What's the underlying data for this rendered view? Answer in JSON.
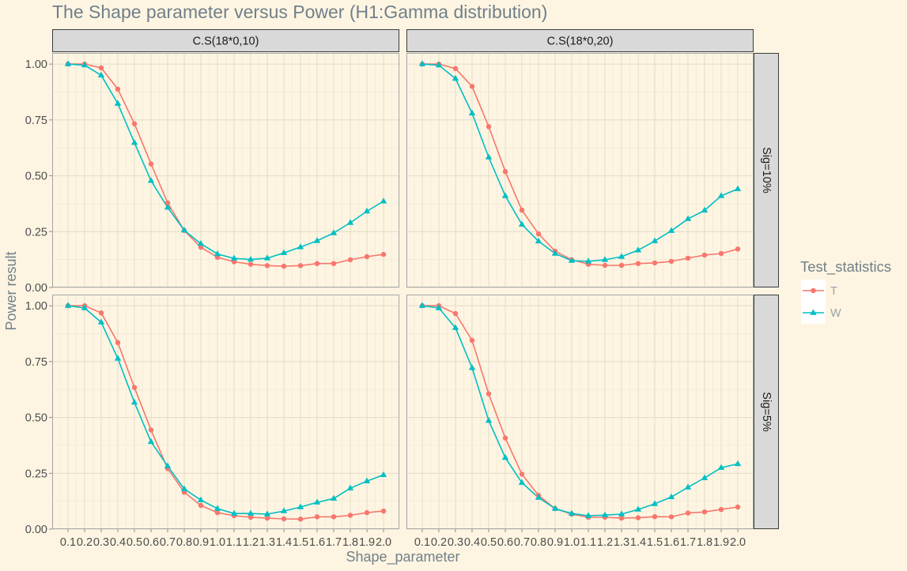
{
  "chart_data": {
    "type": "line",
    "title": "The Shape parameter versus Power (H1:Gamma distribution)",
    "xlabel": "Shape_parameter",
    "ylabel": "Power result",
    "x": [
      0.1,
      0.2,
      0.3,
      0.4,
      0.5,
      0.6,
      0.7,
      0.8,
      0.9,
      1.0,
      1.1,
      1.2,
      1.3,
      1.4,
      1.5,
      1.6,
      1.7,
      1.8,
      1.9,
      2.0
    ],
    "x_tick_labels": [
      "0.1",
      "0.2",
      "0.3",
      "0.4",
      "0.5",
      "0.6",
      "0.7",
      "0.8",
      "0.9",
      "1.0",
      "1.1",
      "1.2",
      "1.3",
      "1.4",
      "1.5",
      "1.6",
      "1.7",
      "1.8",
      "1.9",
      "2.0"
    ],
    "y_ticks": [
      0,
      0.25,
      0.5,
      0.75,
      1.0
    ],
    "y_tick_labels": [
      "0.00",
      "0.25",
      "0.50",
      "0.75",
      "1.00"
    ],
    "xlim": [
      0.005,
      2.095
    ],
    "ylim": [
      0,
      1.05
    ],
    "grid": true,
    "legend": {
      "title": "Test_statistics",
      "position": "right"
    },
    "series": [
      {
        "name": "T",
        "color": "#F8766D",
        "marker": "circle"
      },
      {
        "name": "W",
        "color": "#00BFC4",
        "marker": "triangle"
      }
    ],
    "facet_cols": [
      "C.S(18*0,10)",
      "C.S(18*0,20)"
    ],
    "facet_rows": [
      "Sig=10%",
      "Sig=5%"
    ],
    "panels": [
      {
        "facet_row": 0,
        "facet_col": 0,
        "values": {
          "T": [
            1.0,
            1.0,
            0.983,
            0.888,
            0.733,
            0.553,
            0.379,
            0.255,
            0.18,
            0.135,
            0.115,
            0.104,
            0.098,
            0.095,
            0.098,
            0.107,
            0.107,
            0.124,
            0.138,
            0.148
          ],
          "W": [
            1.0,
            0.995,
            0.95,
            0.823,
            0.648,
            0.478,
            0.358,
            0.256,
            0.196,
            0.15,
            0.13,
            0.125,
            0.131,
            0.155,
            0.181,
            0.209,
            0.244,
            0.29,
            0.341,
            0.386
          ]
        }
      },
      {
        "facet_row": 0,
        "facet_col": 1,
        "values": {
          "T": [
            1.0,
            1.0,
            0.98,
            0.9,
            0.72,
            0.519,
            0.346,
            0.24,
            0.163,
            0.124,
            0.104,
            0.099,
            0.099,
            0.107,
            0.11,
            0.117,
            0.131,
            0.145,
            0.152,
            0.172
          ],
          "W": [
            1.0,
            0.995,
            0.935,
            0.78,
            0.583,
            0.41,
            0.282,
            0.207,
            0.152,
            0.12,
            0.117,
            0.124,
            0.138,
            0.167,
            0.208,
            0.254,
            0.307,
            0.345,
            0.41,
            0.441
          ]
        }
      },
      {
        "facet_row": 1,
        "facet_col": 0,
        "values": {
          "T": [
            1.0,
            1.0,
            0.968,
            0.835,
            0.634,
            0.444,
            0.271,
            0.165,
            0.106,
            0.074,
            0.06,
            0.053,
            0.049,
            0.046,
            0.045,
            0.055,
            0.055,
            0.062,
            0.074,
            0.081
          ],
          "W": [
            1.0,
            0.99,
            0.926,
            0.764,
            0.567,
            0.391,
            0.282,
            0.18,
            0.13,
            0.092,
            0.07,
            0.07,
            0.067,
            0.081,
            0.099,
            0.12,
            0.137,
            0.183,
            0.215,
            0.243
          ]
        }
      },
      {
        "facet_row": 1,
        "facet_col": 1,
        "values": {
          "T": [
            1.0,
            1.0,
            0.965,
            0.845,
            0.606,
            0.408,
            0.246,
            0.151,
            0.092,
            0.067,
            0.053,
            0.053,
            0.049,
            0.051,
            0.056,
            0.055,
            0.072,
            0.077,
            0.088,
            0.099
          ],
          "W": [
            1.0,
            0.99,
            0.901,
            0.722,
            0.486,
            0.32,
            0.208,
            0.141,
            0.092,
            0.07,
            0.06,
            0.063,
            0.067,
            0.088,
            0.113,
            0.144,
            0.187,
            0.229,
            0.275,
            0.292
          ]
        }
      }
    ]
  }
}
